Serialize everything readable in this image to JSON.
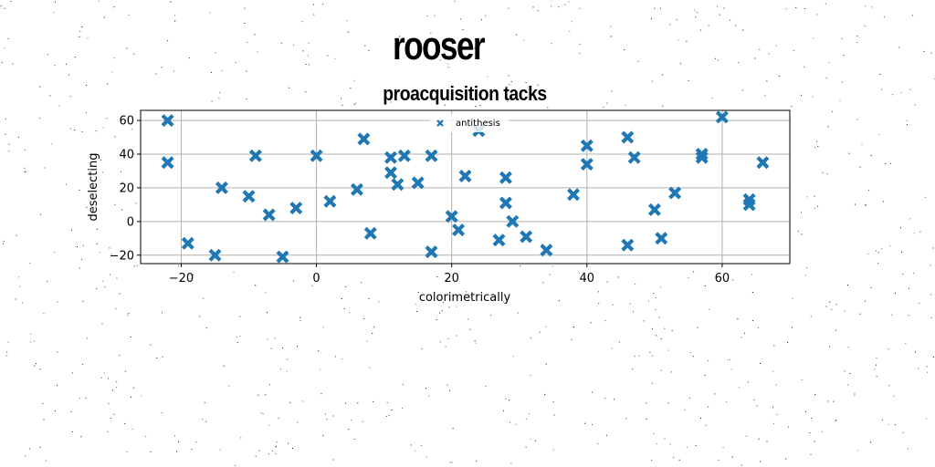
{
  "suptitle": "rooser",
  "chart_data": {
    "type": "scatter",
    "title": "proacquisition tacks",
    "xlabel": "colorimetrically",
    "ylabel": "deselecting",
    "xlim": [
      -26,
      70
    ],
    "ylim": [
      -25,
      66
    ],
    "xticks": [
      -20,
      0,
      20,
      40,
      60
    ],
    "yticks": [
      -20,
      0,
      20,
      40,
      60
    ],
    "grid": true,
    "legend_position": "top-center",
    "marker": "x-filled",
    "series": [
      {
        "name": "antithesis",
        "color": "#1f77b4",
        "points": [
          [
            -22,
            60
          ],
          [
            -22,
            35
          ],
          [
            -19,
            -13
          ],
          [
            -15,
            -20
          ],
          [
            -14,
            20
          ],
          [
            -10,
            15
          ],
          [
            -9,
            39
          ],
          [
            -7,
            4
          ],
          [
            -5,
            -21
          ],
          [
            -3,
            8
          ],
          [
            0,
            39
          ],
          [
            2,
            12
          ],
          [
            6,
            19
          ],
          [
            7,
            49
          ],
          [
            8,
            -7
          ],
          [
            11,
            38
          ],
          [
            11,
            29
          ],
          [
            12,
            22
          ],
          [
            13,
            39
          ],
          [
            15,
            23
          ],
          [
            17,
            39
          ],
          [
            17,
            -18
          ],
          [
            20,
            3
          ],
          [
            21,
            -5
          ],
          [
            22,
            27
          ],
          [
            24,
            54
          ],
          [
            27,
            -11
          ],
          [
            28,
            26
          ],
          [
            28,
            11
          ],
          [
            29,
            0
          ],
          [
            31,
            -9
          ],
          [
            34,
            -17
          ],
          [
            38,
            16
          ],
          [
            40,
            45
          ],
          [
            40,
            34
          ],
          [
            46,
            50
          ],
          [
            46,
            -14
          ],
          [
            47,
            38
          ],
          [
            50,
            7
          ],
          [
            51,
            -10
          ],
          [
            53,
            17
          ],
          [
            57,
            40
          ],
          [
            57,
            38
          ],
          [
            60,
            62
          ],
          [
            64,
            13
          ],
          [
            64,
            10
          ],
          [
            66,
            35
          ]
        ]
      }
    ]
  }
}
